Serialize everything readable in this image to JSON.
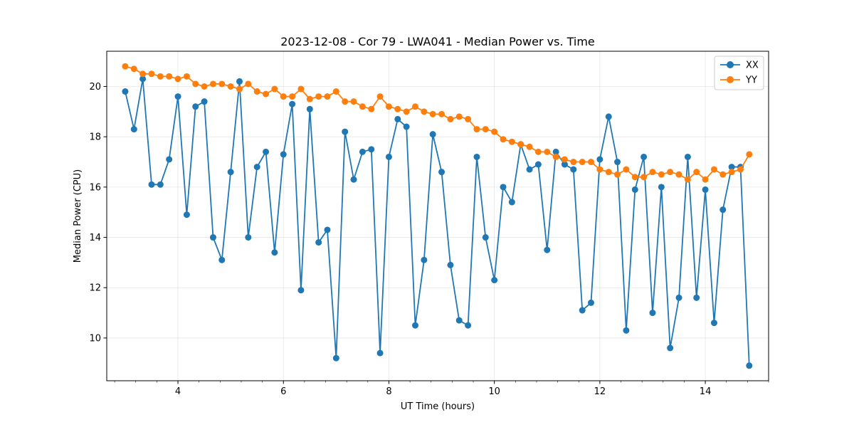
{
  "chart_data": {
    "type": "line",
    "title": "2023-12-08 - Cor 79 - LWA041 - Median Power vs. Time",
    "xlabel": "UT Time (hours)",
    "ylabel": "Median Power (CPU)",
    "xlim": [
      2.65,
      15.2
    ],
    "ylim": [
      8.3,
      21.4
    ],
    "x_ticks": [
      4,
      6,
      8,
      10,
      12,
      14
    ],
    "x_tick_labels": [
      "4",
      "6",
      "8",
      "10",
      "12",
      "14"
    ],
    "y_ticks": [
      10,
      12,
      14,
      16,
      18,
      20
    ],
    "y_tick_labels": [
      "10",
      "12",
      "14",
      "16",
      "18",
      "20"
    ],
    "grid": true,
    "legend_position": "top-right",
    "x": [
      3.0,
      3.167,
      3.333,
      3.5,
      3.667,
      3.833,
      4.0,
      4.167,
      4.333,
      4.5,
      4.667,
      4.833,
      5.0,
      5.167,
      5.333,
      5.5,
      5.667,
      5.833,
      6.0,
      6.167,
      6.333,
      6.5,
      6.667,
      6.833,
      7.0,
      7.167,
      7.333,
      7.5,
      7.667,
      7.833,
      8.0,
      8.167,
      8.333,
      8.5,
      8.667,
      8.833,
      9.0,
      9.167,
      9.333,
      9.5,
      9.667,
      9.833,
      10.0,
      10.167,
      10.333,
      10.5,
      10.667,
      10.833,
      11.0,
      11.167,
      11.333,
      11.5,
      11.667,
      11.833,
      12.0,
      12.167,
      12.333,
      12.5,
      12.667,
      12.833,
      13.0,
      13.167,
      13.333,
      13.5,
      13.667,
      13.833,
      14.0,
      14.167,
      14.333,
      14.5,
      14.667,
      14.833
    ],
    "series": [
      {
        "name": "XX",
        "color": "#1f77b4",
        "values": [
          19.8,
          18.3,
          20.3,
          16.1,
          16.1,
          17.1,
          19.6,
          14.9,
          19.2,
          19.4,
          14.0,
          13.1,
          16.6,
          20.2,
          14.0,
          16.8,
          17.4,
          13.4,
          17.3,
          19.3,
          11.9,
          19.1,
          13.8,
          14.3,
          9.2,
          18.2,
          16.3,
          17.4,
          17.5,
          9.4,
          17.2,
          18.7,
          18.4,
          10.5,
          13.1,
          18.1,
          16.6,
          12.9,
          10.7,
          10.5,
          17.2,
          14.0,
          12.3,
          16.0,
          15.4,
          17.7,
          16.7,
          16.9,
          13.5,
          17.4,
          16.9,
          16.7,
          11.1,
          11.4,
          17.1,
          18.8,
          17.0,
          10.3,
          15.9,
          17.2,
          11.0,
          16.0,
          9.6,
          11.6,
          17.2,
          11.6,
          15.9,
          10.6,
          15.1,
          16.8,
          16.8,
          8.9
        ]
      },
      {
        "name": "YY",
        "color": "#ff7f0e",
        "values": [
          20.8,
          20.7,
          20.5,
          20.5,
          20.4,
          20.4,
          20.3,
          20.4,
          20.1,
          20.0,
          20.1,
          20.1,
          20.0,
          19.9,
          20.1,
          19.8,
          19.7,
          19.9,
          19.6,
          19.6,
          19.9,
          19.5,
          19.6,
          19.6,
          19.8,
          19.4,
          19.4,
          19.2,
          19.1,
          19.6,
          19.2,
          19.1,
          19.0,
          19.2,
          19.0,
          18.9,
          18.9,
          18.7,
          18.8,
          18.7,
          18.3,
          18.3,
          18.2,
          17.9,
          17.8,
          17.7,
          17.6,
          17.4,
          17.4,
          17.2,
          17.1,
          17.0,
          17.0,
          17.0,
          16.7,
          16.6,
          16.5,
          16.7,
          16.4,
          16.4,
          16.6,
          16.5,
          16.6,
          16.5,
          16.3,
          16.6,
          16.3,
          16.7,
          16.5,
          16.6,
          16.7,
          17.3
        ]
      }
    ]
  }
}
